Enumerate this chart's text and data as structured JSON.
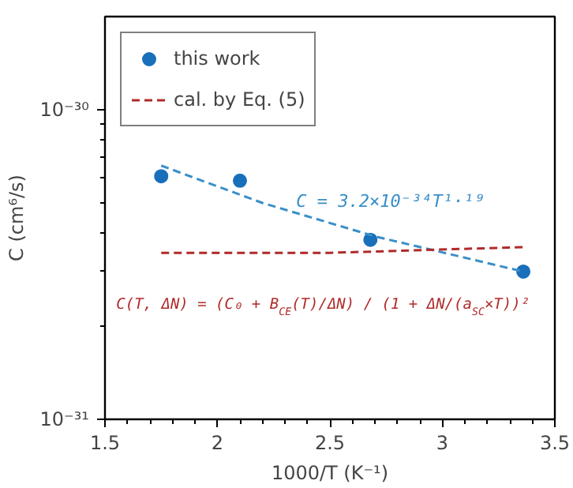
{
  "chart_data": {
    "type": "scatter",
    "xlabel": "1000/T (K⁻¹)",
    "ylabel": "C (cm⁶/s)",
    "xlim": [
      1.5,
      3.5
    ],
    "xticks": [
      1.5,
      2,
      2.5,
      3,
      3.5
    ],
    "ylim": [
      1e-31,
      2e-30
    ],
    "yticks": [
      {
        "value": 1e-31,
        "label": "10⁻³¹"
      },
      {
        "value": 1e-30,
        "label": "10⁻³⁰"
      }
    ],
    "log": "y",
    "grid": false,
    "legend": "top left",
    "series": [
      {
        "name": "this work",
        "marker": "circle",
        "color": "#1a6fba",
        "x": [
          1.75,
          2.1,
          2.68,
          3.36
        ],
        "values": [
          6.1e-31,
          5.9e-31,
          3.8e-31,
          3e-31
        ]
      },
      {
        "type": "line",
        "marker": "none",
        "line_style": "dashed",
        "color": "#3a8fc8",
        "x": [
          1.75,
          2.2,
          2.7,
          3.36
        ],
        "values": [
          6.6e-31,
          5e-31,
          3.9e-31,
          3e-31
        ]
      },
      {
        "name": "cal. by Eq. (5)",
        "type": "line",
        "marker": "none",
        "line_style": "dashed",
        "color": "#b02a2a",
        "x": [
          1.75,
          2.5,
          3.36
        ],
        "values": [
          3.45e-31,
          3.45e-31,
          3.6e-31
        ]
      }
    ],
    "annotations": [
      "C = 3.2×10⁻³⁴T¹·¹⁹",
      "C(T, ΔN) = (C₀ + B$_{CE}$(T)/ΔN) / (1 + ΔN/(a$_{SC}$×T))²"
    ]
  }
}
